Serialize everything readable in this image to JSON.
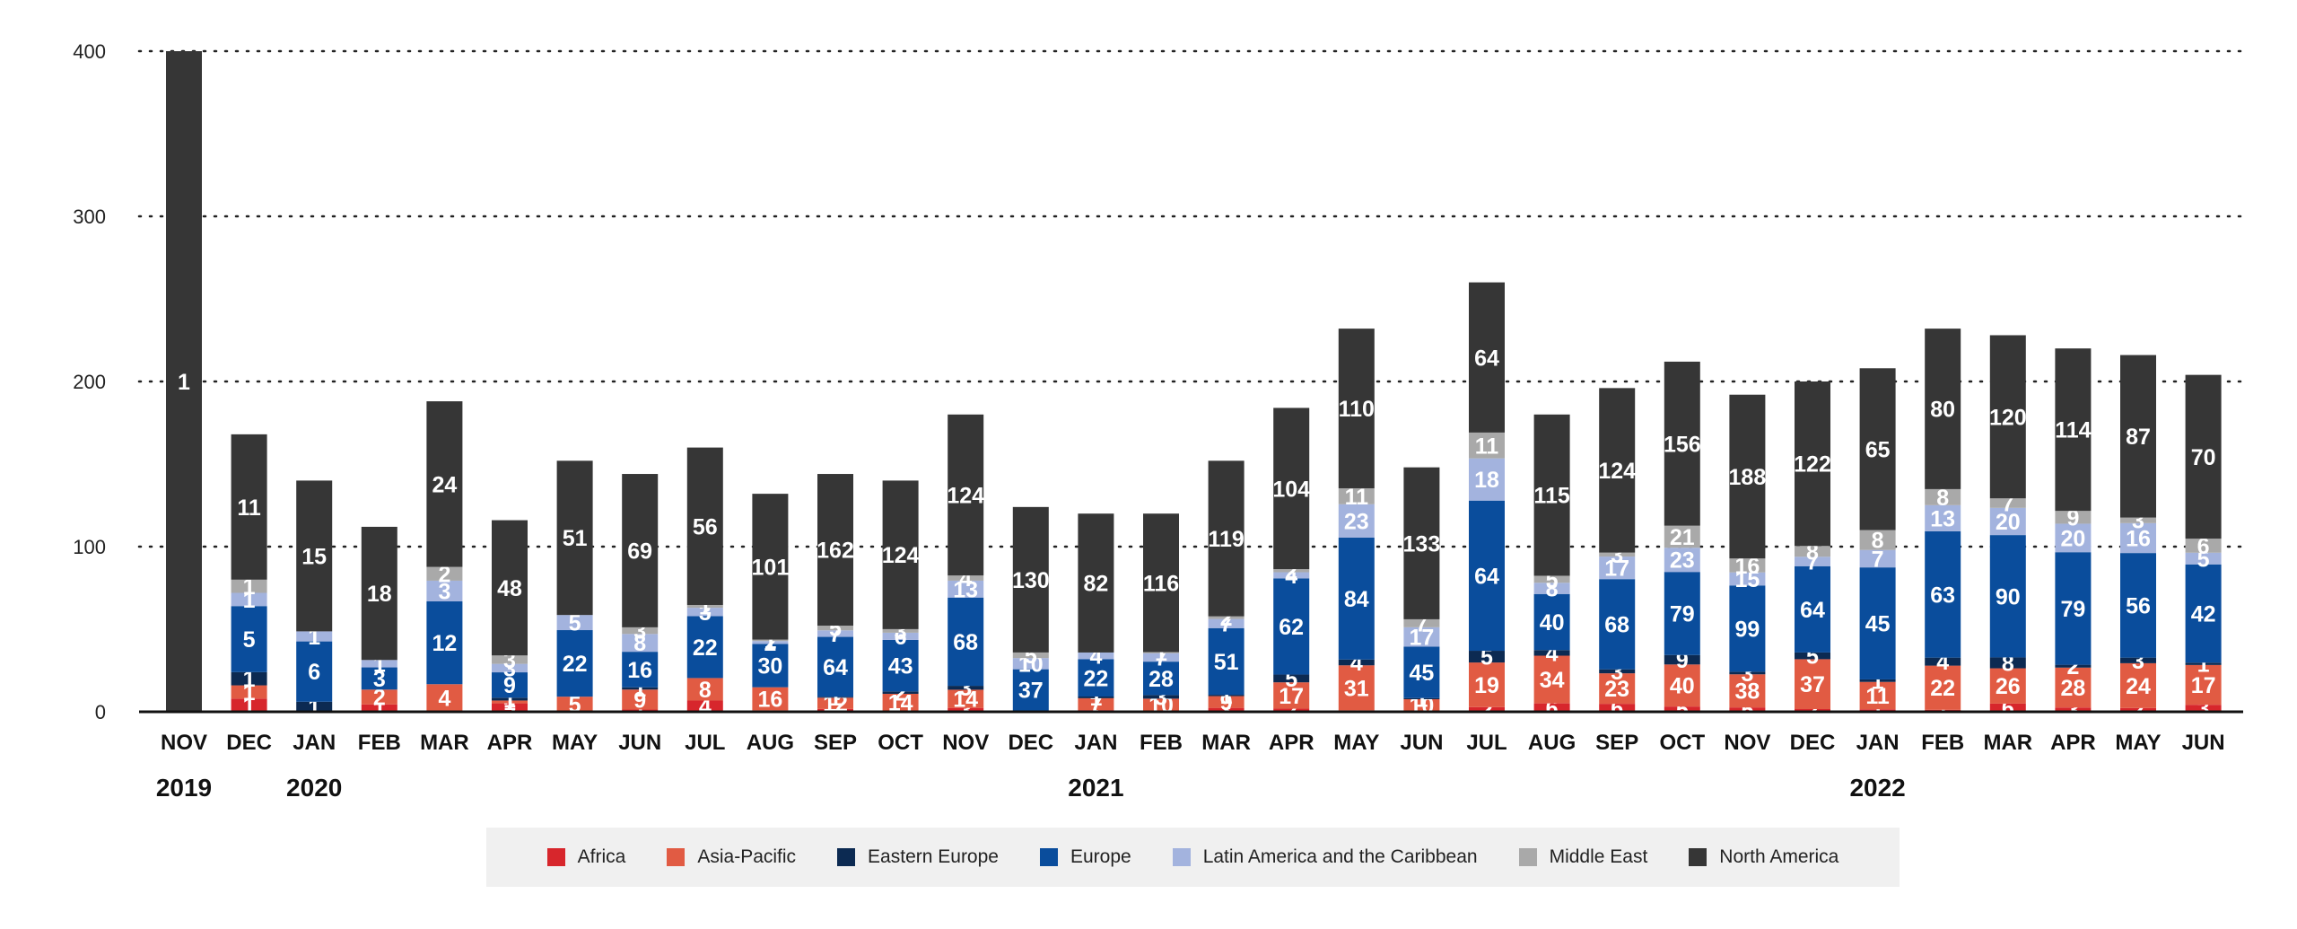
{
  "chart_data": {
    "type": "bar",
    "stacked": true,
    "categories": [
      "NOV",
      "DEC",
      "JAN",
      "FEB",
      "MAR",
      "APR",
      "MAY",
      "JUN",
      "JUL",
      "AUG",
      "SEP",
      "OCT",
      "NOV",
      "DEC",
      "JAN",
      "FEB",
      "MAR",
      "APR",
      "MAY",
      "JUN",
      "JUL",
      "AUG",
      "SEP",
      "OCT",
      "NOV",
      "DEC",
      "JAN",
      "FEB",
      "MAR",
      "APR",
      "MAY",
      "JUN"
    ],
    "year_labels": [
      {
        "label": "2019",
        "index": 0
      },
      {
        "label": "2020",
        "index": 2
      },
      {
        "label": "2021",
        "index": 14
      },
      {
        "label": "2022",
        "index": 26
      }
    ],
    "ylim": [
      0,
      400
    ],
    "yticks": [
      0,
      100,
      200,
      300,
      400
    ],
    "grid": "dotted horizontal",
    "legend_position": "bottom",
    "series": [
      {
        "name": "Africa",
        "color": "#d7262c",
        "values": [
          null,
          1,
          null,
          1,
          null,
          3,
          null,
          1,
          4,
          1,
          3,
          1,
          3,
          1,
          1,
          1,
          3,
          2,
          1,
          1,
          2,
          6,
          6,
          5,
          5,
          2,
          1,
          1,
          6,
          3,
          2,
          3
        ]
      },
      {
        "name": "Asia-Pacific",
        "color": "#e15b43",
        "values": [
          null,
          1,
          null,
          2,
          4,
          1,
          5,
          9,
          8,
          16,
          12,
          14,
          14,
          null,
          7,
          10,
          9,
          17,
          31,
          10,
          19,
          34,
          23,
          40,
          38,
          37,
          11,
          22,
          26,
          28,
          24,
          17
        ]
      },
      {
        "name": "Eastern Europe",
        "color": "#0c2a52",
        "values": [
          null,
          1,
          1,
          null,
          null,
          1,
          null,
          1,
          null,
          null,
          1,
          2,
          3,
          null,
          1,
          3,
          1,
          5,
          4,
          1,
          5,
          4,
          3,
          9,
          3,
          5,
          1,
          4,
          8,
          2,
          3,
          1
        ]
      },
      {
        "name": "Europe",
        "color": "#0a4d9c",
        "values": [
          null,
          5,
          6,
          3,
          12,
          9,
          22,
          16,
          22,
          30,
          64,
          43,
          68,
          37,
          22,
          28,
          51,
          62,
          84,
          45,
          64,
          40,
          68,
          79,
          99,
          64,
          45,
          63,
          90,
          79,
          56,
          42
        ]
      },
      {
        "name": "Latin America and the Caribbean",
        "color": "#a3b3de",
        "values": [
          null,
          1,
          1,
          1,
          3,
          3,
          5,
          8,
          3,
          2,
          7,
          6,
          13,
          10,
          4,
          7,
          7,
          4,
          23,
          17,
          18,
          8,
          17,
          23,
          15,
          7,
          7,
          13,
          20,
          20,
          16,
          5
        ]
      },
      {
        "name": "Middle East",
        "color": "#a9a9a9",
        "values": [
          null,
          1,
          null,
          null,
          2,
          3,
          null,
          3,
          1,
          1,
          5,
          3,
          4,
          5,
          null,
          1,
          2,
          2,
          11,
          7,
          11,
          5,
          3,
          21,
          16,
          8,
          8,
          8,
          7,
          9,
          3,
          6
        ]
      },
      {
        "name": "North America",
        "color": "#363636",
        "values": [
          1,
          11,
          15,
          18,
          24,
          48,
          51,
          69,
          56,
          101,
          162,
          124,
          124,
          130,
          82,
          116,
          119,
          104,
          110,
          133,
          64,
          115,
          124,
          156,
          188,
          122,
          65,
          80,
          120,
          114,
          87,
          70
        ]
      }
    ],
    "bar_totals_pct": [
      100,
      42,
      35,
      28,
      47,
      29,
      38,
      36,
      40,
      33,
      36,
      35,
      45,
      31,
      30,
      30,
      38,
      46,
      58,
      37,
      65,
      45,
      49,
      53,
      48,
      50,
      52,
      58,
      57,
      55,
      54,
      51
    ]
  }
}
